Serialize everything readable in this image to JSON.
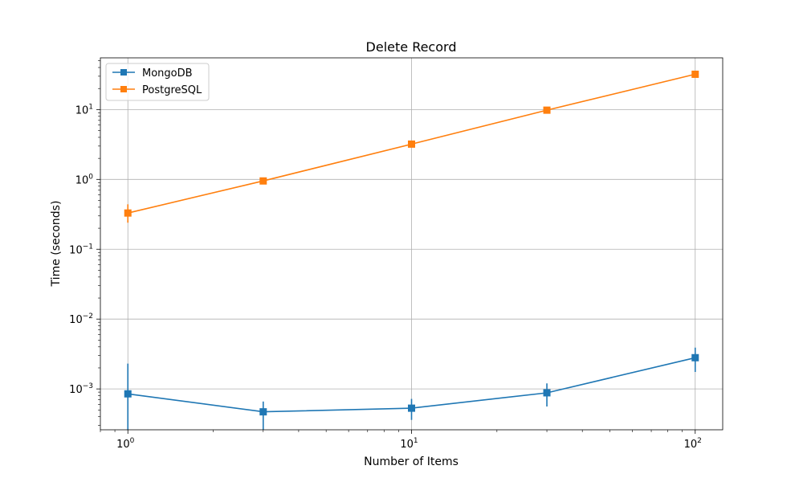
{
  "chart_data": {
    "type": "line",
    "title": "Delete Record",
    "xlabel": "Number of Items",
    "ylabel": "Time (seconds)",
    "xscale": "log",
    "yscale": "log",
    "xlim": [
      0.8,
      125
    ],
    "ylim": [
      0.00026,
      55
    ],
    "grid": true,
    "legend_position": "top-left",
    "x_ticks": [
      {
        "base": "10",
        "exp": "0",
        "value": 1
      },
      {
        "base": "10",
        "exp": "1",
        "value": 10
      },
      {
        "base": "10",
        "exp": "2",
        "value": 100
      }
    ],
    "y_ticks": [
      {
        "base": "10",
        "exp": "−3",
        "value": 0.001
      },
      {
        "base": "10",
        "exp": "−2",
        "value": 0.01
      },
      {
        "base": "10",
        "exp": "−1",
        "value": 0.1
      },
      {
        "base": "10",
        "exp": "0",
        "value": 1
      },
      {
        "base": "10",
        "exp": "1",
        "value": 10
      }
    ],
    "x": [
      1,
      3,
      10,
      30,
      100
    ],
    "series": [
      {
        "name": "MongoDB",
        "color": "#1f77b4",
        "values": [
          0.00085,
          0.00047,
          0.00053,
          0.00088,
          0.0028
        ],
        "err_low": [
          0.00026,
          0.00026,
          0.00036,
          0.00056,
          0.00175
        ],
        "err_high": [
          0.0023,
          0.00066,
          0.00072,
          0.0012,
          0.0039
        ]
      },
      {
        "name": "PostgreSQL",
        "color": "#ff7f0e",
        "values": [
          0.33,
          0.95,
          3.2,
          9.8,
          32
        ],
        "err_low": [
          0.24,
          0.9,
          3.05,
          9.4,
          30.5
        ],
        "err_high": [
          0.44,
          1.0,
          3.35,
          10.2,
          33.5
        ]
      }
    ]
  }
}
